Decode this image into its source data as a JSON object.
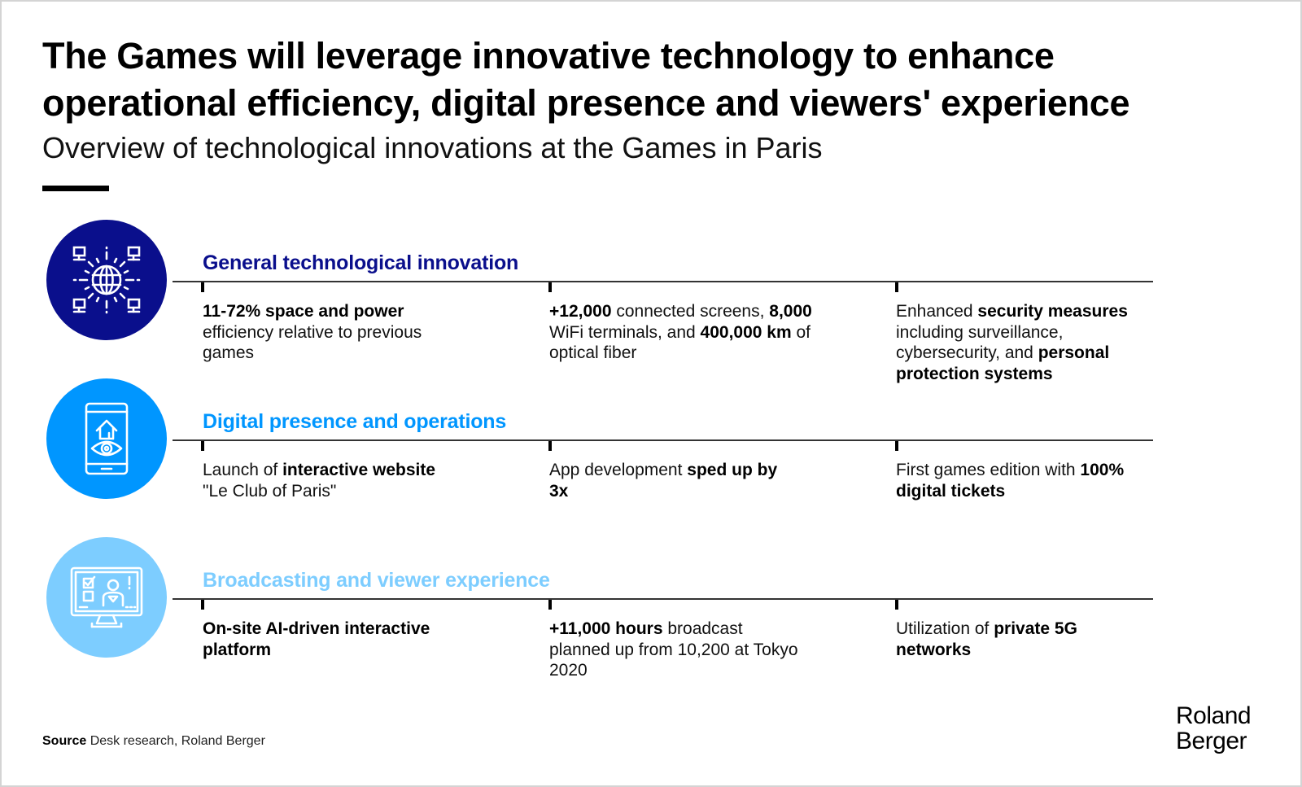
{
  "header": {
    "title_line1": "The Games will leverage innovative technology to enhance",
    "title_line2": "operational efficiency, digital presence and viewers' experience",
    "subtitle": "Overview of technological innovations at the Games in Paris"
  },
  "colors": {
    "general": "#0a0f8c",
    "digital": "#0096ff",
    "broadcast": "#7dcdff",
    "text": "#000000",
    "rule": "#333333"
  },
  "sections": [
    {
      "title": "General technological innovation",
      "icon": "network-globe-icon",
      "items": [
        [
          {
            "b": "11-72% space and power"
          },
          {
            "t": " efficiency relative to previous games"
          }
        ],
        [
          {
            "b": "+12,000"
          },
          {
            "t": " connected screens, "
          },
          {
            "b": "8,000"
          },
          {
            "t": " WiFi terminals, and "
          },
          {
            "b": "400,000 km"
          },
          {
            "t": " of optical fiber"
          }
        ],
        [
          {
            "t": "Enhanced "
          },
          {
            "b": "security measures"
          },
          {
            "t": " including surveillance, cybersecurity, and "
          },
          {
            "b": "personal protection systems"
          }
        ]
      ]
    },
    {
      "title": "Digital presence and operations",
      "icon": "smartphone-home-eye-icon",
      "items": [
        [
          {
            "t": "Launch of "
          },
          {
            "b": "interactive website"
          },
          {
            "t": " \"Le Club of Paris\""
          }
        ],
        [
          {
            "t": "App development "
          },
          {
            "b": "sped up by 3x"
          }
        ],
        [
          {
            "t": "First games edition with "
          },
          {
            "b": "100% digital tickets"
          }
        ]
      ]
    },
    {
      "title": "Broadcasting and viewer experience",
      "icon": "monitor-presenter-icon",
      "items": [
        [
          {
            "b": "On-site AI-driven interactive platform"
          }
        ],
        [
          {
            "b": "+11,000 hours"
          },
          {
            "t": " broadcast planned up from 10,200 at Tokyo 2020"
          }
        ],
        [
          {
            "t": "Utilization of "
          },
          {
            "b": "private 5G networks"
          }
        ]
      ]
    }
  ],
  "footer": {
    "source_label": "Source",
    "source_text": " Desk research, Roland Berger",
    "logo_line1": "Roland",
    "logo_line2": "Berger"
  }
}
